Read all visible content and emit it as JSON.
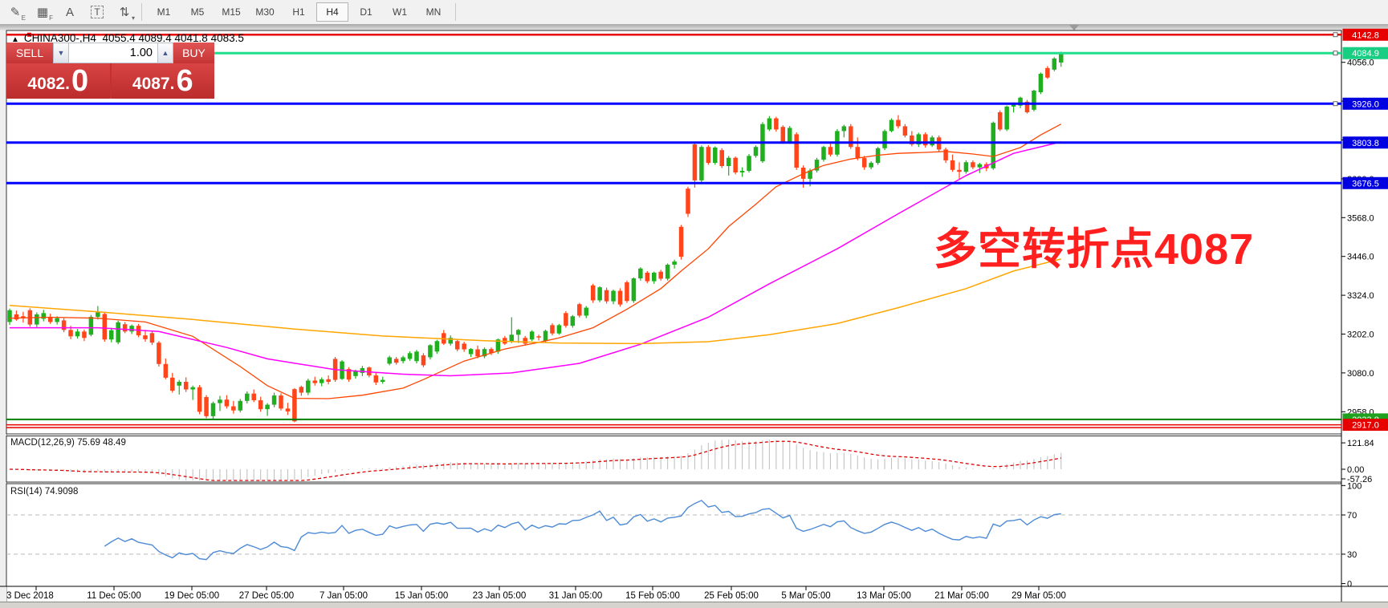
{
  "toolbar": {
    "tools": [
      {
        "name": "draw-channel-tool",
        "glyph": "✎",
        "sub": "E"
      },
      {
        "name": "grid-tool",
        "glyph": "▦",
        "sub": "F"
      },
      {
        "name": "text-tool",
        "glyph": "A",
        "sub": ""
      },
      {
        "name": "text-label-tool",
        "glyph": "T",
        "sub": ""
      },
      {
        "name": "arrows-tool",
        "glyph": "⇅",
        "sub": "▾"
      }
    ],
    "timeframes": [
      "M1",
      "M5",
      "M15",
      "M30",
      "H1",
      "H4",
      "D1",
      "W1",
      "MN"
    ],
    "active_timeframe": "H4"
  },
  "header": {
    "title_row": "CHINA300-,H4  4055.4 4089.4 4041.8 4083.5"
  },
  "trade_panel": {
    "sell_label": "SELL",
    "buy_label": "BUY",
    "volume": "1.00",
    "sell_price": "4082",
    "sell_big": "0",
    "buy_price": "4087",
    "buy_big": "6"
  },
  "indicators": {
    "macd_label": "MACD(12,26,9) 75.69 48.49",
    "rsi_label": "RSI(14) 74.9098",
    "macd_axis": [
      "121.84",
      "0.00",
      "-57.26"
    ],
    "rsi_axis": [
      "100",
      "70",
      "30",
      "0"
    ]
  },
  "annotation": {
    "text": "多空转折点4087",
    "color": "#FF1F1F"
  },
  "chart_data": {
    "type": "candlestick",
    "symbol": "CHINA300-",
    "period": "H4",
    "last_bar": {
      "open": 4055.4,
      "high": 4089.4,
      "low": 4041.8,
      "close": 4083.5
    },
    "colors": {
      "up": "#1FAF1F",
      "down": "#FF4519",
      "ma_fast": "#FF4500",
      "ma_mid": "#FF00FF",
      "ma_slow": "#FFA500",
      "macd_hist": "#C2C2C2",
      "macd_signal": "#DD0000",
      "rsi": "#4D8BD6",
      "hline_blue": "#0000FF",
      "price_line_green": "#1FDE8C",
      "stop_line_red": "#E60000",
      "low_line_green": "#007F00"
    },
    "y_axis": {
      "ticks": [
        4056.0,
        3934.0,
        3812.0,
        3690.0,
        3568.0,
        3446.0,
        3324.0,
        3202.0,
        3080.0,
        2958.0
      ]
    },
    "badges": [
      {
        "label": "4142.8",
        "price": 4142.8,
        "bg": "#E60000"
      },
      {
        "label": "4084.9",
        "price": 4084.9,
        "bg": "#17CE82"
      },
      {
        "label": "3926.0",
        "price": 3926.0,
        "bg": "#0000E0"
      },
      {
        "label": "3803.8",
        "price": 3803.8,
        "bg": "#0000E0"
      },
      {
        "label": "3676.5",
        "price": 3676.5,
        "bg": "#0000E0"
      },
      {
        "label": "2933.8",
        "price": 2933.8,
        "bg": "#1FA11F"
      },
      {
        "label": "2917.0",
        "price": 2917.0,
        "bg": "#E60000"
      }
    ],
    "hlines": [
      {
        "price": 4142.8,
        "color": "#E60000",
        "w": 2.5
      },
      {
        "price": 4084.9,
        "color": "#1FDE8C",
        "w": 3
      },
      {
        "price": 3926.0,
        "color": "#0000FF",
        "w": 3
      },
      {
        "price": 3803.8,
        "color": "#0000FF",
        "w": 3
      },
      {
        "price": 3676.5,
        "color": "#0000FF",
        "w": 3
      },
      {
        "price": 2933.8,
        "color": "#007F00",
        "w": 2
      },
      {
        "price": 2917.0,
        "color": "#E60000",
        "w": 1.5
      },
      {
        "price": 2908.0,
        "color": "#E60000",
        "w": 1.5
      }
    ],
    "x_axis": {
      "labels": [
        "3 Dec 2018",
        "11 Dec 05:00",
        "19 Dec 05:00",
        "27 Dec 05:00",
        "7 Jan 05:00",
        "15 Jan 05:00",
        "23 Jan 05:00",
        "31 Jan 05:00",
        "15 Feb 05:00",
        "25 Feb 05:00",
        "5 Mar 05:00",
        "13 Mar 05:00",
        "21 Mar 05:00",
        "29 Mar 05:00"
      ],
      "positions": [
        45,
        142,
        239,
        332,
        428,
        525,
        622,
        717,
        813,
        911,
        1004,
        1101,
        1198,
        1294
      ]
    },
    "candles": [
      [
        3240,
        3282,
        3231,
        3277
      ],
      [
        3264,
        3276,
        3244,
        3248
      ],
      [
        3258,
        3272,
        3238,
        3252
      ],
      [
        3277,
        3283,
        3225,
        3232
      ],
      [
        3232,
        3270,
        3224,
        3264
      ],
      [
        3250,
        3278,
        3242,
        3268
      ],
      [
        3255,
        3266,
        3234,
        3240
      ],
      [
        3240,
        3258,
        3232,
        3252
      ],
      [
        3245,
        3252,
        3208,
        3215
      ],
      [
        3215,
        3228,
        3186,
        3195
      ],
      [
        3195,
        3218,
        3188,
        3210
      ],
      [
        3210,
        3216,
        3180,
        3190
      ],
      [
        3200,
        3262,
        3195,
        3256
      ],
      [
        3256,
        3290,
        3248,
        3270
      ],
      [
        3265,
        3272,
        3178,
        3185
      ],
      [
        3185,
        3222,
        3176,
        3214
      ],
      [
        3176,
        3244,
        3170,
        3239
      ],
      [
        3233,
        3240,
        3205,
        3210
      ],
      [
        3210,
        3232,
        3202,
        3228
      ],
      [
        3228,
        3234,
        3192,
        3198
      ],
      [
        3198,
        3215,
        3178,
        3186
      ],
      [
        3205,
        3212,
        3168,
        3175
      ],
      [
        3175,
        3180,
        3100,
        3108
      ],
      [
        3108,
        3125,
        3060,
        3065
      ],
      [
        3065,
        3080,
        3018,
        3024
      ],
      [
        3040,
        3058,
        3012,
        3052
      ],
      [
        3052,
        3066,
        3020,
        3028
      ],
      [
        3028,
        3040,
        2995,
        3035
      ],
      [
        3035,
        3042,
        2950,
        2958
      ],
      [
        3004,
        3010,
        2938,
        2944
      ],
      [
        2944,
        2990,
        2936,
        2985
      ],
      [
        2985,
        3008,
        2960,
        2996
      ],
      [
        2996,
        3010,
        2968,
        2975
      ],
      [
        2975,
        2992,
        2952,
        2962
      ],
      [
        2962,
        2998,
        2956,
        2992
      ],
      [
        2992,
        3022,
        2984,
        3015
      ],
      [
        3015,
        3028,
        2988,
        2994
      ],
      [
        2994,
        3005,
        2958,
        2966
      ],
      [
        2966,
        2985,
        2945,
        2980
      ],
      [
        2980,
        3018,
        2972,
        3009
      ],
      [
        3009,
        3016,
        2962,
        2968
      ],
      [
        2968,
        2986,
        2948,
        2959
      ],
      [
        3029,
        3032,
        2925,
        2928
      ],
      [
        3036,
        3040,
        3008,
        3018
      ],
      [
        3018,
        3062,
        3010,
        3056
      ],
      [
        3056,
        3068,
        3040,
        3048
      ],
      [
        3048,
        3066,
        3038,
        3060
      ],
      [
        3060,
        3072,
        3044,
        3052
      ],
      [
        3124,
        3130,
        3052,
        3058
      ],
      [
        3061,
        3120,
        3058,
        3116
      ],
      [
        3092,
        3098,
        3052,
        3059
      ],
      [
        3070,
        3090,
        3062,
        3085
      ],
      [
        3080,
        3102,
        3070,
        3095
      ],
      [
        3097,
        3100,
        3066,
        3072
      ],
      [
        3072,
        3080,
        3042,
        3050
      ],
      [
        3052,
        3068,
        3046,
        3058
      ],
      [
        3109,
        3134,
        3104,
        3129
      ],
      [
        3124,
        3130,
        3106,
        3112
      ],
      [
        3117,
        3134,
        3110,
        3129
      ],
      [
        3124,
        3148,
        3118,
        3142
      ],
      [
        3117,
        3152,
        3110,
        3147
      ],
      [
        3135,
        3142,
        3098,
        3104
      ],
      [
        3129,
        3170,
        3122,
        3167
      ],
      [
        3147,
        3184,
        3140,
        3180
      ],
      [
        3205,
        3215,
        3168,
        3172
      ],
      [
        3172,
        3198,
        3166,
        3190
      ],
      [
        3180,
        3186,
        3148,
        3154
      ],
      [
        3172,
        3178,
        3146,
        3154
      ],
      [
        3139,
        3158,
        3130,
        3155
      ],
      [
        3154,
        3166,
        3126,
        3132
      ],
      [
        3132,
        3160,
        3126,
        3155
      ],
      [
        3155,
        3160,
        3136,
        3142
      ],
      [
        3147,
        3188,
        3140,
        3185
      ],
      [
        3190,
        3196,
        3168,
        3172
      ],
      [
        3180,
        3255,
        3174,
        3200
      ],
      [
        3200,
        3218,
        3174,
        3215
      ],
      [
        3190,
        3196,
        3166,
        3172
      ],
      [
        3185,
        3214,
        3180,
        3210
      ],
      [
        3195,
        3200,
        3182,
        3192
      ],
      [
        3180,
        3216,
        3176,
        3212
      ],
      [
        3230,
        3236,
        3198,
        3204
      ],
      [
        3204,
        3234,
        3200,
        3230
      ],
      [
        3268,
        3274,
        3222,
        3228
      ],
      [
        3228,
        3262,
        3222,
        3258
      ],
      [
        3296,
        3300,
        3254,
        3260
      ],
      [
        3260,
        3290,
        3252,
        3285
      ],
      [
        3355,
        3360,
        3300,
        3308
      ],
      [
        3308,
        3352,
        3302,
        3349
      ],
      [
        3340,
        3348,
        3298,
        3305
      ],
      [
        3305,
        3342,
        3296,
        3338
      ],
      [
        3338,
        3346,
        3288,
        3295
      ],
      [
        3365,
        3370,
        3300,
        3306
      ],
      [
        3306,
        3380,
        3300,
        3377
      ],
      [
        3377,
        3412,
        3370,
        3408
      ],
      [
        3395,
        3400,
        3362,
        3368
      ],
      [
        3368,
        3398,
        3360,
        3395
      ],
      [
        3398,
        3404,
        3370,
        3376
      ],
      [
        3376,
        3424,
        3370,
        3420
      ],
      [
        3420,
        3436,
        3408,
        3430
      ],
      [
        3539,
        3545,
        3436,
        3445
      ],
      [
        3659,
        3665,
        3570,
        3580
      ],
      [
        3798,
        3804,
        3662,
        3685
      ],
      [
        3685,
        3795,
        3680,
        3790
      ],
      [
        3790,
        3796,
        3734,
        3740
      ],
      [
        3740,
        3792,
        3734,
        3788
      ],
      [
        3780,
        3786,
        3724,
        3730
      ],
      [
        3730,
        3762,
        3700,
        3756
      ],
      [
        3756,
        3760,
        3704,
        3710
      ],
      [
        3710,
        3726,
        3696,
        3715
      ],
      [
        3715,
        3768,
        3710,
        3762
      ],
      [
        3762,
        3795,
        3756,
        3790
      ],
      [
        3745,
        3868,
        3740,
        3862
      ],
      [
        3845,
        3887,
        3840,
        3880
      ],
      [
        3880,
        3885,
        3838,
        3845
      ],
      [
        3853,
        3858,
        3800,
        3806
      ],
      [
        3806,
        3856,
        3800,
        3850
      ],
      [
        3830,
        3836,
        3718,
        3725
      ],
      [
        3725,
        3732,
        3662,
        3690
      ],
      [
        3690,
        3722,
        3666,
        3716
      ],
      [
        3716,
        3756,
        3710,
        3750
      ],
      [
        3750,
        3794,
        3744,
        3790
      ],
      [
        3790,
        3800,
        3760,
        3766
      ],
      [
        3766,
        3846,
        3760,
        3840
      ],
      [
        3840,
        3860,
        3820,
        3855
      ],
      [
        3855,
        3862,
        3784,
        3790
      ],
      [
        3790,
        3820,
        3748,
        3755
      ],
      [
        3755,
        3762,
        3718,
        3726
      ],
      [
        3726,
        3745,
        3720,
        3740
      ],
      [
        3740,
        3790,
        3734,
        3786
      ],
      [
        3786,
        3845,
        3780,
        3840
      ],
      [
        3840,
        3880,
        3836,
        3875
      ],
      [
        3875,
        3890,
        3848,
        3855
      ],
      [
        3855,
        3862,
        3820,
        3826
      ],
      [
        3826,
        3840,
        3792,
        3798
      ],
      [
        3798,
        3835,
        3790,
        3830
      ],
      [
        3830,
        3836,
        3788,
        3795
      ],
      [
        3795,
        3826,
        3790,
        3820
      ],
      [
        3820,
        3826,
        3776,
        3782
      ],
      [
        3782,
        3788,
        3740,
        3748
      ],
      [
        3748,
        3766,
        3712,
        3718
      ],
      [
        3718,
        3742,
        3690,
        3712
      ],
      [
        3712,
        3748,
        3706,
        3742
      ],
      [
        3742,
        3748,
        3720,
        3726
      ],
      [
        3726,
        3740,
        3708,
        3736
      ],
      [
        3736,
        3742,
        3714,
        3723
      ],
      [
        3723,
        3870,
        3718,
        3866
      ],
      [
        3899,
        3905,
        3840,
        3845
      ],
      [
        3845,
        3920,
        3840,
        3917
      ],
      [
        3917,
        3930,
        3898,
        3925
      ],
      [
        3920,
        3948,
        3912,
        3945
      ],
      [
        3932,
        3938,
        3895,
        3899
      ],
      [
        3907,
        3970,
        3902,
        3967
      ],
      [
        3962,
        4024,
        3956,
        4020
      ],
      [
        4038,
        4044,
        4004,
        4008
      ],
      [
        4033,
        4072,
        4028,
        4068
      ],
      [
        4055.4,
        4089.4,
        4041.8,
        4083.5
      ]
    ],
    "moving_averages": [
      {
        "name": "fast",
        "color": "#FF4500",
        "width": 1.3,
        "points": [
          [
            0,
            3252
          ],
          [
            6,
            3255
          ],
          [
            13,
            3252
          ],
          [
            20,
            3240
          ],
          [
            27,
            3195
          ],
          [
            34,
            3100
          ],
          [
            38,
            3040
          ],
          [
            42,
            3000
          ],
          [
            47,
            2999
          ],
          [
            52,
            3010
          ],
          [
            58,
            3032
          ],
          [
            61,
            3059
          ],
          [
            67,
            3117
          ],
          [
            73,
            3155
          ],
          [
            78,
            3176
          ],
          [
            81,
            3190
          ],
          [
            86,
            3222
          ],
          [
            91,
            3280
          ],
          [
            96,
            3345
          ],
          [
            99,
            3400
          ],
          [
            103,
            3470
          ],
          [
            106,
            3540
          ],
          [
            110,
            3610
          ],
          [
            113,
            3665
          ],
          [
            117,
            3706
          ],
          [
            120,
            3732
          ],
          [
            124,
            3752
          ],
          [
            128,
            3764
          ],
          [
            131,
            3770
          ],
          [
            135,
            3773
          ],
          [
            138,
            3776
          ],
          [
            142,
            3768
          ],
          [
            145,
            3760
          ],
          [
            149,
            3788
          ],
          [
            152,
            3828
          ],
          [
            155,
            3862
          ]
        ]
      },
      {
        "name": "mid",
        "color": "#FF00FF",
        "width": 1.5,
        "points": [
          [
            0,
            3222
          ],
          [
            13,
            3222
          ],
          [
            22,
            3210
          ],
          [
            32,
            3160
          ],
          [
            38,
            3124
          ],
          [
            48,
            3090
          ],
          [
            58,
            3076
          ],
          [
            65,
            3071
          ],
          [
            74,
            3080
          ],
          [
            84,
            3110
          ],
          [
            93,
            3170
          ],
          [
            103,
            3255
          ],
          [
            112,
            3360
          ],
          [
            122,
            3470
          ],
          [
            131,
            3580
          ],
          [
            141,
            3700
          ],
          [
            148,
            3770
          ],
          [
            155,
            3806
          ]
        ]
      },
      {
        "name": "slow",
        "color": "#FFA500",
        "width": 1.5,
        "points": [
          [
            0,
            3292
          ],
          [
            13,
            3272
          ],
          [
            27,
            3248
          ],
          [
            42,
            3218
          ],
          [
            55,
            3196
          ],
          [
            70,
            3181
          ],
          [
            81,
            3174
          ],
          [
            93,
            3172
          ],
          [
            103,
            3178
          ],
          [
            112,
            3200
          ],
          [
            122,
            3235
          ],
          [
            131,
            3285
          ],
          [
            141,
            3345
          ],
          [
            148,
            3400
          ],
          [
            155,
            3438
          ]
        ]
      }
    ],
    "macd": {
      "fast": 12,
      "slow": 26,
      "signal": 9,
      "current": [
        75.69,
        48.49
      ]
    },
    "rsi": {
      "period": 14,
      "levels": [
        70,
        30
      ],
      "current": 74.9098
    }
  }
}
